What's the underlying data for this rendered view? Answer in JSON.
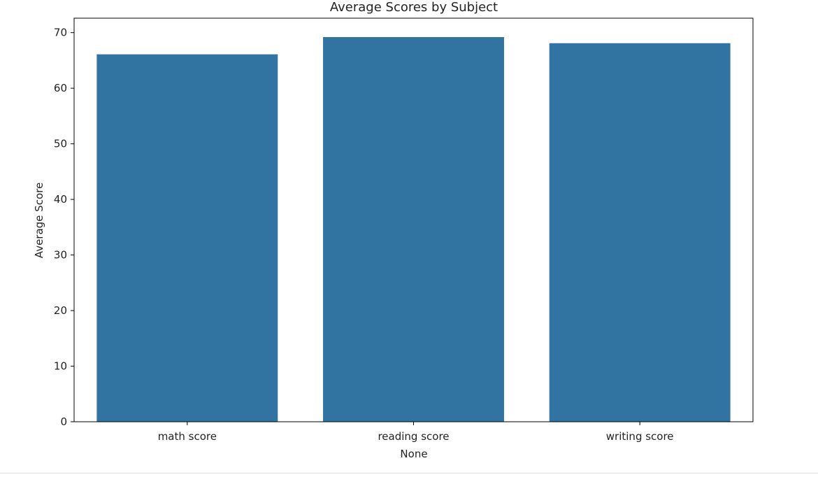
{
  "chart_data": {
    "type": "bar",
    "title": "Average Scores by Subject",
    "xlabel": "None",
    "ylabel": "Average Score",
    "categories": [
      "math score",
      "reading score",
      "writing score"
    ],
    "values": [
      66.1,
      69.2,
      68.1
    ],
    "ylim": [
      0,
      72.6
    ],
    "yticks": [
      0,
      10,
      20,
      30,
      40,
      50,
      60,
      70
    ],
    "grid": false,
    "bar_color": "#3274a1"
  }
}
